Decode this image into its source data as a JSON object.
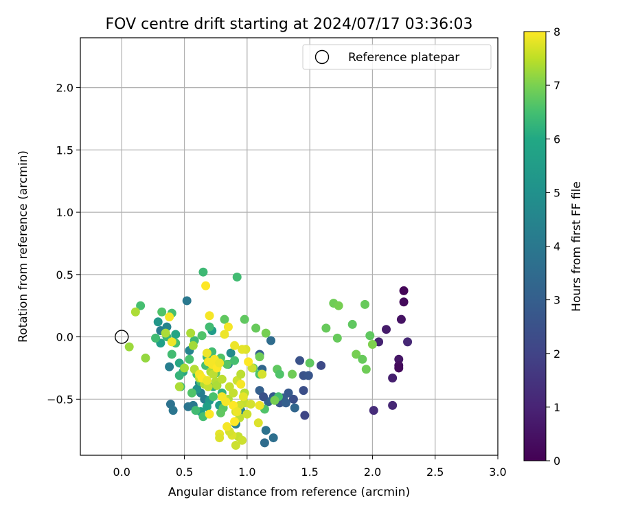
{
  "chart_data": {
    "type": "scatter",
    "title": "FOV centre drift starting at 2024/07/17 03:36:03",
    "xlabel": "Angular distance from reference (arcmin)",
    "ylabel": "Rotation from reference (arcmin)",
    "xlim": [
      -0.33,
      3.0
    ],
    "ylim": [
      -0.95,
      2.4
    ],
    "xticks": [
      0.0,
      0.5,
      1.0,
      1.5,
      2.0,
      2.5,
      3.0
    ],
    "xtick_labels": [
      "0.0",
      "0.5",
      "1.0",
      "1.5",
      "2.0",
      "2.5",
      "3.0"
    ],
    "yticks": [
      -0.5,
      0.0,
      0.5,
      1.0,
      1.5,
      2.0
    ],
    "ytick_labels": [
      "−0.5",
      "0.0",
      "0.5",
      "1.0",
      "1.5",
      "2.0"
    ],
    "grid": true,
    "legend": {
      "position": "upper-right",
      "entries": [
        {
          "label": "Reference platepar",
          "marker": "open-circle"
        }
      ]
    },
    "reference_point": {
      "x": 0.0,
      "y": 0.0
    },
    "colorbar": {
      "label": "Hours from first FF file",
      "colormap": "viridis",
      "range": [
        0,
        8
      ],
      "ticks": [
        0,
        1,
        2,
        3,
        4,
        5,
        6,
        7,
        8
      ],
      "tick_labels": [
        "0",
        "1",
        "2",
        "3",
        "4",
        "5",
        "6",
        "7",
        "8"
      ]
    },
    "colors": [
      "#440154",
      "#46327e",
      "#365c8d",
      "#277f8e",
      "#1fa187",
      "#4ac16d",
      "#a0da39",
      "#fde725"
    ],
    "points": [
      [
        2.25,
        0.37,
        0.1
      ],
      [
        2.25,
        0.28,
        0.2
      ],
      [
        2.23,
        0.14,
        0.4
      ],
      [
        2.11,
        0.06,
        0.6
      ],
      [
        2.05,
        -0.04,
        0.8
      ],
      [
        2.28,
        -0.04,
        0.9
      ],
      [
        2.21,
        -0.18,
        0.5
      ],
      [
        2.21,
        -0.23,
        0.3
      ],
      [
        2.21,
        -0.25,
        0.2
      ],
      [
        2.16,
        -0.33,
        0.7
      ],
      [
        2.16,
        -0.55,
        0.9
      ],
      [
        2.01,
        -0.59,
        1.0
      ],
      [
        1.42,
        -0.19,
        2.0
      ],
      [
        1.45,
        -0.31,
        2.0
      ],
      [
        1.49,
        -0.31,
        2.1
      ],
      [
        1.59,
        -0.23,
        1.8
      ],
      [
        1.45,
        -0.43,
        1.9
      ],
      [
        1.37,
        -0.5,
        1.9
      ],
      [
        1.46,
        -0.63,
        1.7
      ],
      [
        1.33,
        -0.45,
        2.2
      ],
      [
        1.29,
        -0.49,
        2.3
      ],
      [
        1.26,
        -0.53,
        2.1
      ],
      [
        1.31,
        -0.53,
        2.4
      ],
      [
        1.38,
        -0.57,
        2.6
      ],
      [
        1.21,
        -0.48,
        2.2
      ],
      [
        1.1,
        -0.43,
        2.4
      ],
      [
        1.22,
        -0.5,
        2.6
      ],
      [
        1.17,
        -0.52,
        2.5
      ],
      [
        1.13,
        -0.48,
        2.0
      ],
      [
        1.1,
        -0.14,
        2.4
      ],
      [
        1.12,
        -0.26,
        2.6
      ],
      [
        1.19,
        -0.03,
        2.8
      ],
      [
        1.15,
        -0.75,
        3.0
      ],
      [
        1.21,
        -0.81,
        2.9
      ],
      [
        1.14,
        -0.85,
        2.8
      ],
      [
        0.52,
        0.29,
        3.2
      ],
      [
        0.38,
        -0.24,
        3.4
      ],
      [
        0.39,
        -0.54,
        3.0
      ],
      [
        0.41,
        -0.59,
        3.1
      ],
      [
        0.31,
        0.05,
        3.3
      ],
      [
        0.36,
        0.08,
        3.6
      ],
      [
        0.53,
        -0.56,
        3.1
      ],
      [
        0.57,
        -0.55,
        3.2
      ],
      [
        0.63,
        -0.45,
        3.4
      ],
      [
        0.66,
        -0.5,
        3.3
      ],
      [
        0.91,
        -0.7,
        3.4
      ],
      [
        0.95,
        -0.59,
        3.5
      ],
      [
        0.62,
        -0.37,
        3.7
      ],
      [
        0.85,
        -0.22,
        3.6
      ],
      [
        0.87,
        -0.13,
        3.8
      ],
      [
        0.54,
        -0.11,
        3.6
      ],
      [
        0.29,
        0.12,
        4.2
      ],
      [
        0.31,
        -0.05,
        4.5
      ],
      [
        0.43,
        0.02,
        4.7
      ],
      [
        0.72,
        0.05,
        4.4
      ],
      [
        0.6,
        -0.42,
        4.1
      ],
      [
        0.7,
        -0.51,
        4.3
      ],
      [
        0.63,
        -0.6,
        4.6
      ],
      [
        0.68,
        -0.56,
        4.5
      ],
      [
        0.78,
        -0.55,
        4.4
      ],
      [
        0.49,
        -0.28,
        4.8
      ],
      [
        0.46,
        -0.21,
        4.8
      ],
      [
        0.73,
        -0.4,
        5.0
      ],
      [
        0.8,
        -0.45,
        5.1
      ],
      [
        0.92,
        0.48,
        5.5
      ],
      [
        0.65,
        0.52,
        5.4
      ],
      [
        0.15,
        0.25,
        5.6
      ],
      [
        0.32,
        0.2,
        5.8
      ],
      [
        0.4,
        0.19,
        5.6
      ],
      [
        0.27,
        -0.01,
        5.5
      ],
      [
        0.36,
        0.0,
        5.3
      ],
      [
        0.4,
        -0.14,
        5.5
      ],
      [
        0.46,
        -0.31,
        5.2
      ],
      [
        0.47,
        -0.4,
        5.4
      ],
      [
        0.43,
        -0.05,
        5.6
      ],
      [
        0.58,
        -0.03,
        5.4
      ],
      [
        0.54,
        -0.18,
        5.7
      ],
      [
        0.64,
        0.01,
        5.8
      ],
      [
        0.7,
        0.08,
        5.5
      ],
      [
        0.68,
        -0.16,
        5.4
      ],
      [
        0.67,
        -0.23,
        5.6
      ],
      [
        0.72,
        -0.12,
        5.5
      ],
      [
        0.79,
        -0.17,
        5.8
      ],
      [
        0.84,
        -0.22,
        5.9
      ],
      [
        0.9,
        -0.19,
        5.6
      ],
      [
        0.82,
        0.14,
        6.0
      ],
      [
        0.75,
        -0.29,
        6.0
      ],
      [
        0.59,
        -0.59,
        5.5
      ],
      [
        0.65,
        -0.64,
        5.6
      ],
      [
        0.6,
        -0.3,
        5.7
      ],
      [
        0.63,
        -0.36,
        5.4
      ],
      [
        0.56,
        -0.45,
        5.8
      ],
      [
        0.81,
        -0.57,
        5.9
      ],
      [
        0.79,
        -0.61,
        6.0
      ],
      [
        0.73,
        -0.48,
        5.7
      ],
      [
        0.98,
        0.14,
        6.0
      ],
      [
        1.07,
        0.07,
        6.1
      ],
      [
        1.1,
        -0.16,
        6.2
      ],
      [
        1.05,
        -0.25,
        5.9
      ],
      [
        1.1,
        -0.3,
        5.7
      ],
      [
        1.14,
        -0.58,
        5.8
      ],
      [
        1.24,
        -0.26,
        6.0
      ],
      [
        1.26,
        -0.3,
        5.8
      ],
      [
        1.25,
        -0.48,
        5.6
      ],
      [
        1.22,
        -0.51,
        6.3
      ],
      [
        1.36,
        -0.3,
        6.2
      ],
      [
        1.15,
        0.03,
        6.3
      ],
      [
        1.5,
        -0.21,
        6.0
      ],
      [
        1.63,
        0.07,
        6.1
      ],
      [
        1.69,
        0.27,
        6.2
      ],
      [
        1.73,
        0.25,
        6.3
      ],
      [
        1.72,
        -0.01,
        6.1
      ],
      [
        1.84,
        0.1,
        6.0
      ],
      [
        1.87,
        -0.14,
        6.3
      ],
      [
        1.92,
        -0.18,
        6.1
      ],
      [
        1.94,
        0.26,
        6.1
      ],
      [
        1.95,
        -0.26,
        6.2
      ],
      [
        1.98,
        0.01,
        6.0
      ],
      [
        2.0,
        -0.06,
        6.4
      ],
      [
        0.19,
        -0.17,
        6.7
      ],
      [
        0.06,
        -0.08,
        6.8
      ],
      [
        0.11,
        0.2,
        7.0
      ],
      [
        0.35,
        0.03,
        7.0
      ],
      [
        0.46,
        -0.4,
        7.0
      ],
      [
        0.5,
        -0.25,
        6.9
      ],
      [
        0.55,
        0.03,
        7.0
      ],
      [
        0.57,
        -0.07,
        6.9
      ],
      [
        0.58,
        -0.26,
        7.1
      ],
      [
        0.62,
        -0.33,
        7.2
      ],
      [
        0.66,
        -0.38,
        7.1
      ],
      [
        0.69,
        -0.4,
        7.3
      ],
      [
        0.71,
        -0.28,
        7.0
      ],
      [
        0.73,
        -0.3,
        7.2
      ],
      [
        0.75,
        -0.36,
        7.1
      ],
      [
        0.76,
        -0.39,
        7.0
      ],
      [
        0.8,
        -0.34,
        7.2
      ],
      [
        0.86,
        -0.4,
        7.3
      ],
      [
        0.85,
        -0.5,
        7.1
      ],
      [
        0.89,
        -0.45,
        7.3
      ],
      [
        0.92,
        -0.35,
        7.4
      ],
      [
        0.95,
        -0.3,
        7.2
      ],
      [
        0.98,
        -0.45,
        7.1
      ],
      [
        0.98,
        -0.53,
        7.3
      ],
      [
        0.94,
        -0.55,
        7.4
      ],
      [
        0.91,
        -0.6,
        7.5
      ],
      [
        0.94,
        -0.65,
        7.2
      ],
      [
        0.93,
        -0.8,
        7.3
      ],
      [
        0.96,
        -0.83,
        7.4
      ],
      [
        0.91,
        -0.87,
        7.4
      ],
      [
        0.88,
        -0.79,
        7.6
      ],
      [
        0.86,
        -0.76,
        7.5
      ],
      [
        0.78,
        -0.78,
        7.7
      ],
      [
        0.78,
        -0.81,
        7.6
      ],
      [
        1.0,
        -0.62,
        7.4
      ],
      [
        1.03,
        -0.54,
        7.5
      ],
      [
        1.09,
        -0.69,
        7.6
      ],
      [
        0.97,
        -0.48,
        7.7
      ],
      [
        1.04,
        -0.25,
        7.4
      ],
      [
        1.12,
        -0.3,
        7.5
      ],
      [
        0.99,
        -0.1,
        7.6
      ],
      [
        0.96,
        -0.1,
        7.7
      ],
      [
        0.9,
        -0.07,
        7.8
      ],
      [
        0.85,
        0.08,
        7.9
      ],
      [
        0.82,
        0.02,
        7.8
      ],
      [
        0.7,
        0.17,
        7.9
      ],
      [
        0.67,
        0.41,
        8.0
      ],
      [
        0.38,
        0.16,
        7.9
      ],
      [
        0.4,
        -0.04,
        7.8
      ],
      [
        0.68,
        -0.13,
        7.8
      ],
      [
        0.69,
        -0.2,
        7.9
      ],
      [
        0.72,
        -0.22,
        7.9
      ],
      [
        0.76,
        -0.25,
        8.0
      ],
      [
        0.74,
        -0.18,
        7.9
      ],
      [
        0.78,
        -0.21,
        7.8
      ],
      [
        0.62,
        -0.3,
        7.9
      ],
      [
        0.64,
        -0.33,
        8.0
      ],
      [
        0.68,
        -0.35,
        7.8
      ],
      [
        0.8,
        -0.48,
        7.9
      ],
      [
        0.83,
        -0.52,
        7.9
      ],
      [
        0.89,
        -0.55,
        8.0
      ],
      [
        0.92,
        -0.6,
        7.8
      ],
      [
        0.7,
        -0.62,
        8.0
      ],
      [
        0.84,
        -0.72,
        7.9
      ],
      [
        0.9,
        -0.68,
        8.0
      ],
      [
        1.01,
        -0.2,
        8.0
      ],
      [
        1.1,
        -0.55,
        7.8
      ],
      [
        0.95,
        -0.38,
        7.9
      ]
    ]
  }
}
